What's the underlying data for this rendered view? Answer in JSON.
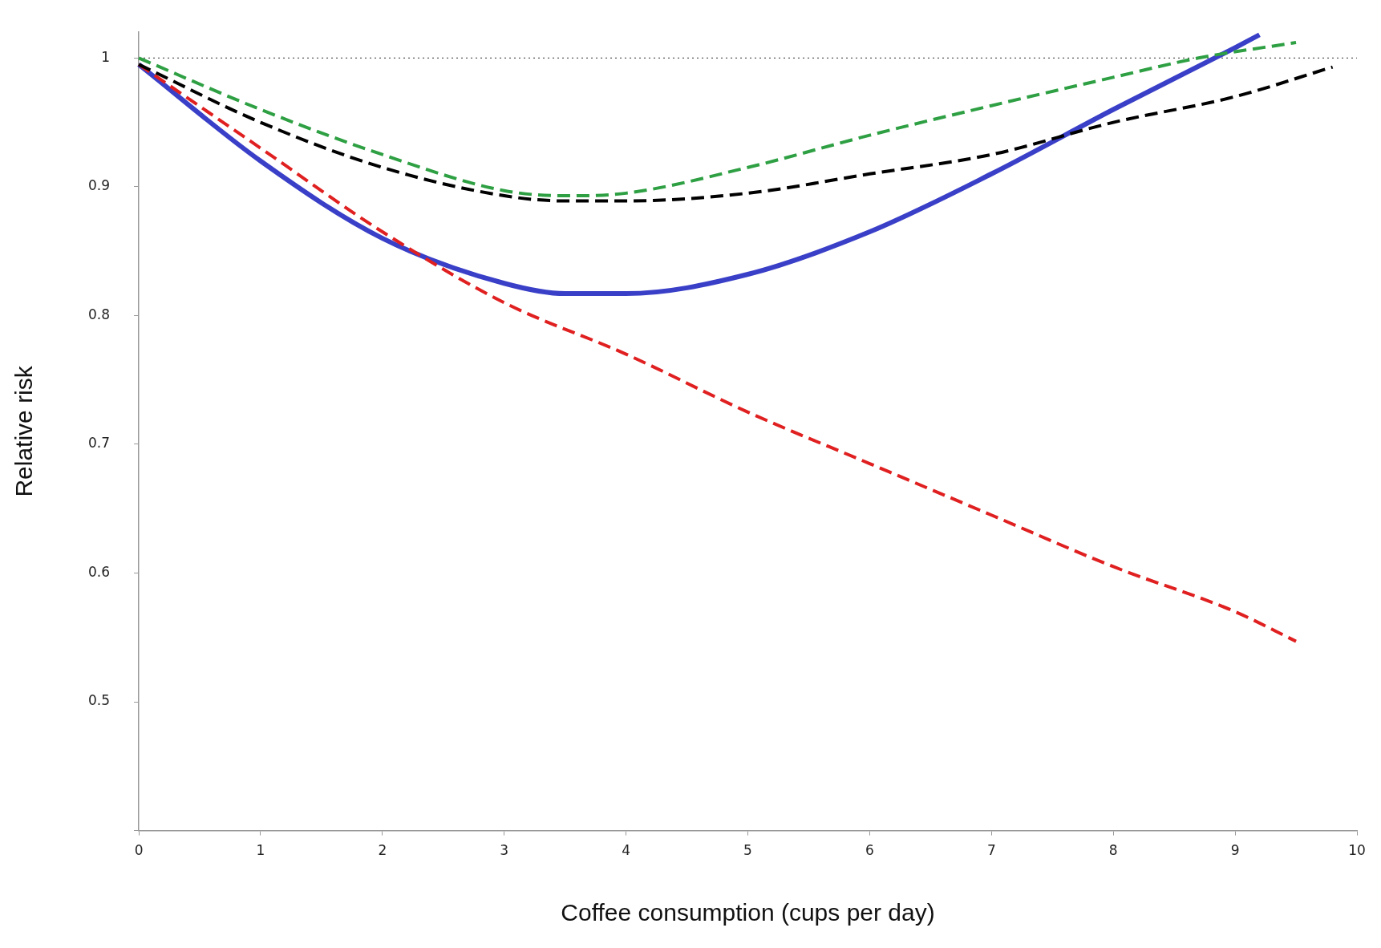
{
  "chart_data": {
    "type": "line",
    "xlabel": "Coffee consumption (cups per day)",
    "ylabel": "Relative risk",
    "xlim": [
      0,
      10
    ],
    "xticks": [
      0,
      1,
      2,
      3,
      4,
      5,
      6,
      7,
      8,
      9,
      10
    ],
    "ylim": [
      0.4,
      1.02
    ],
    "yticks": [
      {
        "value": 0.4,
        "label": null
      },
      0.5,
      0.6,
      0.7,
      0.8,
      0.9,
      1
    ],
    "grid": false,
    "legend": false,
    "marker": "none",
    "ref_lines": [
      {
        "axis": "y",
        "value": 1,
        "color": "#555555",
        "line_style": "dotted"
      }
    ],
    "series": [
      {
        "color": "#2ea043",
        "line_style": "dashed",
        "x": [
          0,
          1,
          2,
          3,
          3.5,
          4,
          5,
          6,
          7,
          8,
          8.7,
          9.5
        ],
        "values": [
          1,
          0.96,
          0.925,
          0.897,
          0.893,
          0.895,
          0.915,
          0.94,
          0.963,
          0.985,
          1,
          1.012
        ]
      },
      {
        "color": "#000000",
        "line_style": "dashed",
        "x": [
          0,
          1,
          2,
          3,
          3.5,
          4,
          5,
          6,
          7,
          8,
          9,
          9.8
        ],
        "values": [
          0.995,
          0.95,
          0.915,
          0.893,
          0.889,
          0.889,
          0.895,
          0.91,
          0.925,
          0.95,
          0.97,
          0.993
        ]
      },
      {
        "color": "#e02020",
        "line_style": "dashed",
        "x": [
          0,
          1,
          2,
          3,
          4,
          5,
          6,
          7,
          8,
          9,
          9.5
        ],
        "values": [
          0.995,
          0.93,
          0.865,
          0.81,
          0.77,
          0.725,
          0.685,
          0.645,
          0.605,
          0.57,
          0.547
        ]
      },
      {
        "color": "#3a3fc8",
        "line_style": "solid",
        "x": [
          0,
          1,
          2,
          3,
          3.5,
          4,
          5,
          6,
          7,
          8,
          9,
          9.2
        ],
        "values": [
          0.995,
          0.92,
          0.86,
          0.825,
          0.817,
          0.817,
          0.832,
          0.865,
          0.91,
          0.96,
          1.008,
          1.018
        ]
      }
    ]
  }
}
